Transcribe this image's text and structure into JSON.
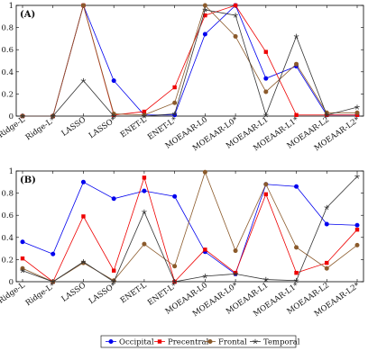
{
  "chart_data": [
    {
      "type": "line",
      "title": "(A)",
      "xlabel": "",
      "ylabel": "",
      "ylim": [
        0,
        1
      ],
      "yticks": [
        "0",
        "0.2",
        "0.4",
        "0.6",
        "0.8",
        "1"
      ],
      "grid": false,
      "categories": [
        "Ridge-L",
        "Ridge-L*",
        "LASSO",
        "LASSO*",
        "ENET-L",
        "ENET-L*",
        "MOEAAR-L0",
        "MOEAAR-L0*",
        "MOEAAR-L1",
        "MOEAAR-L1*",
        "MOEAAR-L2",
        "MOEAAR-L2*"
      ],
      "series": [
        {
          "name": "Occipital",
          "values": [
            0,
            0,
            1,
            0.32,
            0.01,
            0.01,
            0.74,
            1,
            0.34,
            0.45,
            0.01,
            0.01
          ]
        },
        {
          "name": "Precentral",
          "values": [
            0,
            0,
            1,
            0.01,
            0.04,
            0.26,
            0.91,
            1,
            0.58,
            0.01,
            0.01,
            0.01
          ]
        },
        {
          "name": "Frontal",
          "values": [
            0,
            0,
            1,
            0.02,
            0.01,
            0.12,
            1,
            0.72,
            0.22,
            0.47,
            0.03,
            0.03
          ]
        },
        {
          "name": "Temporal",
          "values": [
            0,
            0,
            0.32,
            0,
            0,
            0.02,
            0.96,
            0.91,
            0.01,
            0.72,
            0.01,
            0.08
          ]
        }
      ]
    },
    {
      "type": "line",
      "title": "(B)",
      "xlabel": "",
      "ylabel": "",
      "ylim": [
        0,
        1
      ],
      "yticks": [
        "0",
        "0.2",
        "0.4",
        "0.6",
        "0.8",
        "1"
      ],
      "grid": false,
      "categories": [
        "Ridge-L",
        "Ridge-L*",
        "LASSO",
        "LASSO*",
        "ENET-L",
        "ENET-L*",
        "MOEAAR-L0",
        "MOEAAR-L0*",
        "MOEAAR-L1",
        "MOEAAR-L1*",
        "MOEAAR-L2",
        "MOEAAR-L2*"
      ],
      "series": [
        {
          "name": "Occipital",
          "values": [
            0.36,
            0.25,
            0.9,
            0.75,
            0.82,
            0.77,
            0.27,
            0.07,
            0.88,
            0.86,
            0.52,
            0.51
          ]
        },
        {
          "name": "Precentral",
          "values": [
            0.21,
            0.0,
            0.59,
            0.1,
            0.94,
            0.0,
            0.29,
            0.08,
            0.79,
            0.08,
            0.17,
            0.47
          ]
        },
        {
          "name": "Frontal",
          "values": [
            0.12,
            0.0,
            0.17,
            0.01,
            0.34,
            0.14,
            0.99,
            0.28,
            0.88,
            0.31,
            0.12,
            0.33
          ]
        },
        {
          "name": "Temporal",
          "values": [
            0.1,
            0.0,
            0.18,
            0.0,
            0.63,
            0.0,
            0.05,
            0.07,
            0.02,
            0.01,
            0.67,
            0.95
          ]
        }
      ]
    }
  ],
  "legend": {
    "placement": "bottom-center",
    "entries": [
      {
        "name": "Occipital",
        "color": "#0000ee",
        "marker": "circle"
      },
      {
        "name": "Precentral",
        "color": "#ee0000",
        "marker": "square"
      },
      {
        "name": "Frontal",
        "color": "#8b5a2b",
        "marker": "circle"
      },
      {
        "name": "Temporal",
        "color": "#333333",
        "marker": "star"
      }
    ]
  }
}
